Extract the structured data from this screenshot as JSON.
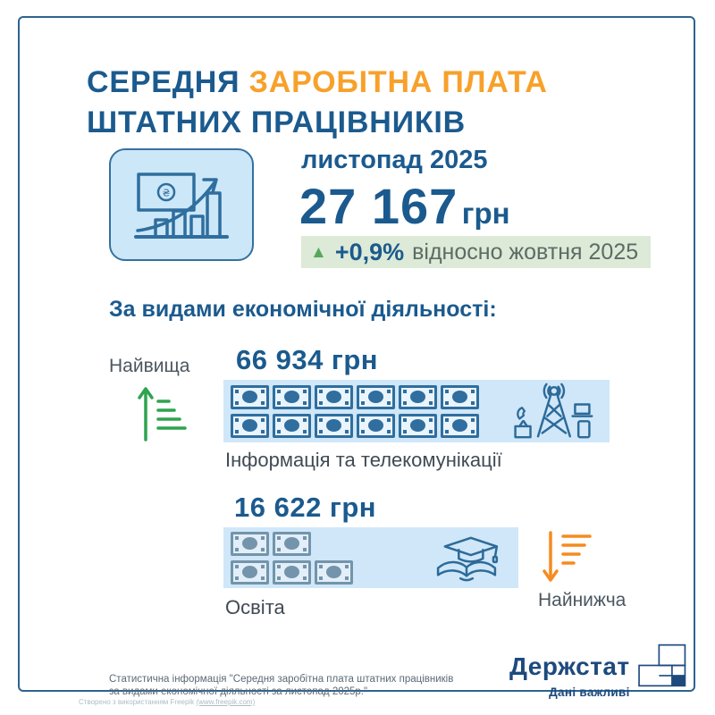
{
  "title": {
    "part1": "СЕРЕДНЯ",
    "part2": "ЗАРОБІТНА ПЛАТА",
    "line2": "ШТАТНИХ ПРАЦІВНИКІВ"
  },
  "hero": {
    "period": "листопад 2025",
    "value": "27 167",
    "unit": "грн",
    "change": {
      "arrow": "▲",
      "delta": "+0,9%",
      "compare": "відносно жовтня 2025"
    }
  },
  "section": {
    "heading": "За видами економічної діяльності:"
  },
  "highest": {
    "tag": "Найвища",
    "value": "66 934 грн",
    "label": "Інформація та телекомунікації",
    "notes_row1": 6,
    "notes_row2": 6
  },
  "lowest": {
    "tag": "Найнижча",
    "value": "16 622 грн",
    "label": "Освіта",
    "notes_row1": 2,
    "notes_row2": 3
  },
  "footer": {
    "source_line1": "Статистична інформація \"Середня заробітна плата штатних працівників",
    "source_line2": "за видами економічної діяльності за листопад 2025р.\"",
    "logo_name": "Держстат",
    "logo_tagline": "Дані важливі"
  },
  "credit": {
    "text": "Створено з використанням Freepik",
    "link": "(www.freepik.com)"
  },
  "colors": {
    "primary_blue": "#1b5a8e",
    "accent_orange": "#f7a12b",
    "badge_green_bg": "#dcead7",
    "triangle_green": "#57a85c",
    "strip_blue": "#cfe7f8",
    "icon_green": "#2da44e",
    "icon_orange": "#f68b1f",
    "logo_blue": "#1d4a7e"
  },
  "chart_data": {
    "type": "pictogram",
    "title": "Середня заробітна плата штатних працівників",
    "period": "листопад 2025",
    "average_salary_uah": 27167,
    "change_vs_previous_month_pct": 0.9,
    "previous_month": "жовтень 2025",
    "subtitle": "За видами економічної діяльності",
    "categories": [
      "Інформація та телекомунікації",
      "Освіта"
    ],
    "values": [
      66934,
      16622
    ],
    "roles": [
      "Найвища",
      "Найнижча"
    ],
    "unit": "грн",
    "banknote_counts": [
      12,
      5
    ]
  }
}
